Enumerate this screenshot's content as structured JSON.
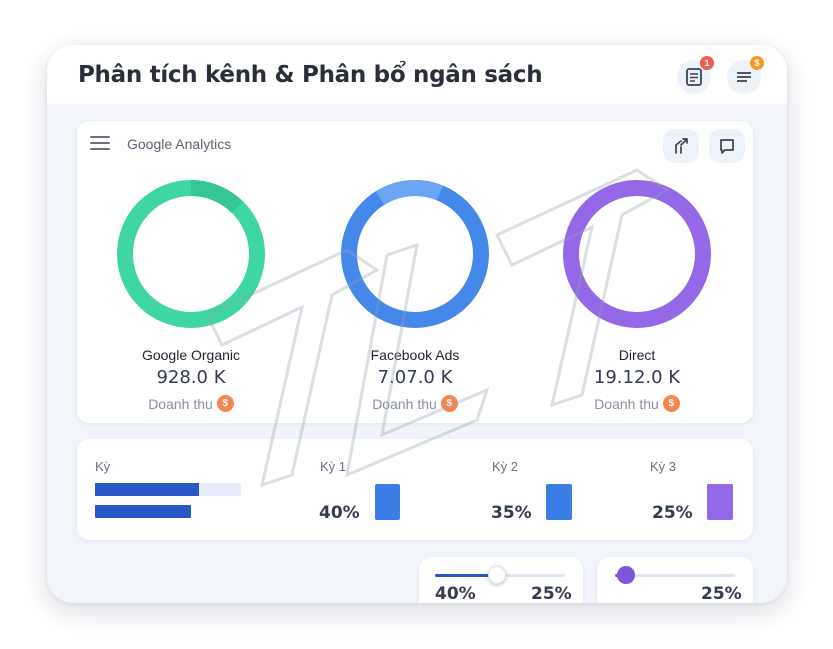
{
  "header": {
    "title": "Phân tích kênh & Phân bổ ngân sách",
    "report_badge": "1",
    "filter_badge": "$"
  },
  "analytics": {
    "source_label": "Google Analytics",
    "channels": [
      {
        "name": "Google Organic",
        "value": "928.0 K",
        "revenue_label": "Doanh thu",
        "coin": "$",
        "color": "#3ed6a2",
        "highlight": "#2fbf8c"
      },
      {
        "name": "Facebook Ads",
        "value": "7.07.0 K",
        "revenue_label": "Doanh thu",
        "coin": "$",
        "color": "#4488ea",
        "highlight": "#6aa6f4"
      },
      {
        "name": "Direct",
        "value": "19.12.0 K",
        "revenue_label": "Doanh thu",
        "coin": "$",
        "color": "#9468e6",
        "highlight": "#9468e6"
      }
    ]
  },
  "periods": {
    "heading": "Kỳ",
    "items": [
      {
        "label": "Kỳ 1",
        "percent": "40%",
        "color": "#3c7ee6"
      },
      {
        "label": "Kỳ 2",
        "percent": "35%",
        "color": "#3c7ee6"
      },
      {
        "label": "Kỳ 3",
        "percent": "25%",
        "color": "#9468e6"
      }
    ]
  },
  "sliders": [
    {
      "left_percent": "40%",
      "right_percent": "25%",
      "fill": 0.45,
      "color": "#2858c5"
    },
    {
      "right_percent": "25%",
      "fill": 0.08,
      "color": "#7b55db"
    }
  ]
}
